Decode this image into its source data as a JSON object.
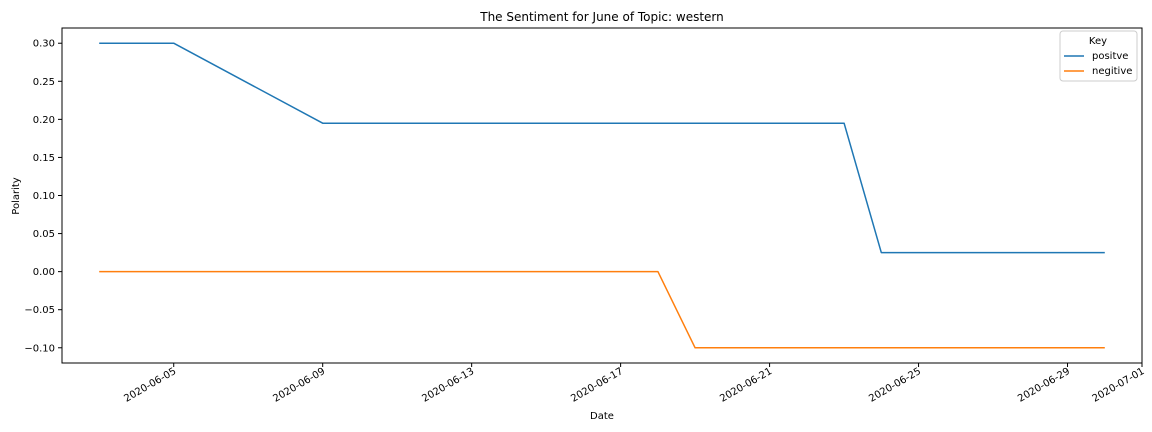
{
  "chart_data": {
    "type": "line",
    "title": "The Sentiment for June of Topic: western",
    "xlabel": "Date",
    "ylabel": "Polarity",
    "x": [
      "2020-06-03",
      "2020-06-05",
      "2020-06-09",
      "2020-06-23",
      "2020-06-24",
      "2020-06-30"
    ],
    "series": [
      {
        "name": "positve",
        "color": "#1f77b4",
        "points": [
          {
            "x": "2020-06-03",
            "y": 0.3
          },
          {
            "x": "2020-06-05",
            "y": 0.3
          },
          {
            "x": "2020-06-09",
            "y": 0.195
          },
          {
            "x": "2020-06-23",
            "y": 0.195
          },
          {
            "x": "2020-06-24",
            "y": 0.025
          },
          {
            "x": "2020-06-30",
            "y": 0.025
          }
        ]
      },
      {
        "name": "negitive",
        "color": "#ff7f0e",
        "points": [
          {
            "x": "2020-06-03",
            "y": 0.0
          },
          {
            "x": "2020-06-18",
            "y": 0.0
          },
          {
            "x": "2020-06-19",
            "y": -0.1
          },
          {
            "x": "2020-06-30",
            "y": -0.1
          }
        ]
      }
    ],
    "ylim": [
      -0.12,
      0.32
    ],
    "xlim": [
      "2020-06-02",
      "2020-07-01"
    ],
    "yticks": [
      0.3,
      0.25,
      0.2,
      0.15,
      0.1,
      0.05,
      0.0,
      -0.05,
      -0.1
    ],
    "ytick_labels": [
      "0.30",
      "0.25",
      "0.20",
      "0.15",
      "0.10",
      "0.05",
      "0.00",
      "−0.05",
      "−0.10"
    ],
    "xticks": [
      "2020-06-05",
      "2020-06-09",
      "2020-06-13",
      "2020-06-17",
      "2020-06-21",
      "2020-06-25",
      "2020-06-29",
      "2020-07-01"
    ],
    "xtick_labels": [
      "2020-06-05",
      "2020-06-09",
      "2020-06-13",
      "2020-06-17",
      "2020-06-21",
      "2020-06-25",
      "2020-06-29",
      "2020-07-01"
    ],
    "legend": {
      "title": "Key",
      "position": "top-right"
    },
    "grid": false
  }
}
